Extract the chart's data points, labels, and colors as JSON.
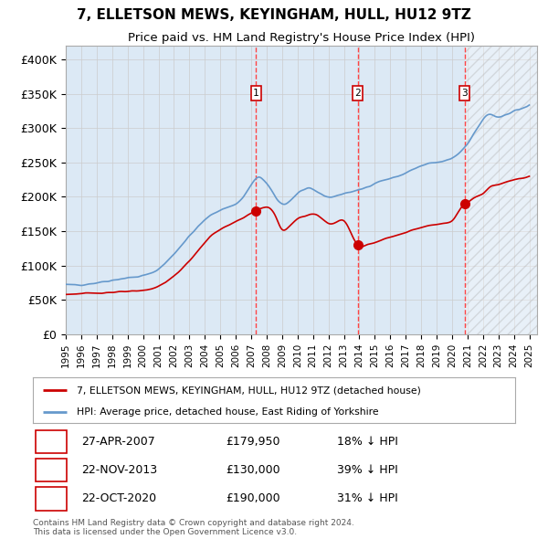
{
  "title": "7, ELLETSON MEWS, KEYINGHAM, HULL, HU12 9TZ",
  "subtitle": "Price paid vs. HM Land Registry's House Price Index (HPI)",
  "red_line_label": "7, ELLETSON MEWS, KEYINGHAM, HULL, HU12 9TZ (detached house)",
  "blue_line_label": "HPI: Average price, detached house, East Riding of Yorkshire",
  "transactions": [
    {
      "num": 1,
      "date": "27-APR-2007",
      "price": 179950,
      "pct": "18% ↓ HPI",
      "x_year": 2007.32
    },
    {
      "num": 2,
      "date": "22-NOV-2013",
      "price": 130000,
      "pct": "39% ↓ HPI",
      "x_year": 2013.89
    },
    {
      "num": 3,
      "date": "22-OCT-2020",
      "price": 190000,
      "pct": "31% ↓ HPI",
      "x_year": 2020.81
    }
  ],
  "ylim": [
    0,
    420000
  ],
  "yticks": [
    0,
    50000,
    100000,
    150000,
    200000,
    250000,
    300000,
    350000,
    400000
  ],
  "ytick_labels": [
    "£0",
    "£50K",
    "£100K",
    "£150K",
    "£200K",
    "£250K",
    "£300K",
    "£350K",
    "£400K"
  ],
  "xlim_start": 1995.0,
  "xlim_end": 2025.5,
  "hpi_color": "#6699cc",
  "red_color": "#cc0000",
  "bg_color": "#dce9f5",
  "grid_color": "#cccccc",
  "dashed_line_color": "#ff4444",
  "box_color": "#cc0000",
  "footnote": "Contains HM Land Registry data © Crown copyright and database right 2024.\nThis data is licensed under the Open Government Licence v3.0.",
  "hpi_anchors": [
    [
      1995.0,
      72000
    ],
    [
      1997.0,
      75000
    ],
    [
      1999.0,
      82000
    ],
    [
      2001.0,
      95000
    ],
    [
      2002.5,
      130000
    ],
    [
      2003.5,
      155000
    ],
    [
      2004.5,
      175000
    ],
    [
      2005.5,
      185000
    ],
    [
      2006.5,
      200000
    ],
    [
      2007.5,
      228000
    ],
    [
      2009.0,
      190000
    ],
    [
      2010.0,
      205000
    ],
    [
      2011.0,
      210000
    ],
    [
      2012.0,
      200000
    ],
    [
      2013.0,
      205000
    ],
    [
      2014.0,
      210000
    ],
    [
      2015.0,
      220000
    ],
    [
      2016.5,
      230000
    ],
    [
      2017.5,
      240000
    ],
    [
      2018.5,
      248000
    ],
    [
      2019.5,
      252000
    ],
    [
      2020.5,
      265000
    ],
    [
      2021.5,
      295000
    ],
    [
      2022.5,
      320000
    ],
    [
      2023.0,
      315000
    ],
    [
      2023.5,
      320000
    ],
    [
      2024.0,
      325000
    ],
    [
      2025.0,
      333000
    ]
  ],
  "red_anchors": [
    [
      1995.0,
      58000
    ],
    [
      1997.0,
      60000
    ],
    [
      1999.0,
      62000
    ],
    [
      2001.0,
      70000
    ],
    [
      2002.5,
      95000
    ],
    [
      2003.5,
      120000
    ],
    [
      2004.5,
      145000
    ],
    [
      2005.5,
      158000
    ],
    [
      2006.5,
      170000
    ],
    [
      2007.32,
      179950
    ],
    [
      2007.5,
      182000
    ],
    [
      2008.0,
      185000
    ],
    [
      2008.5,
      175000
    ],
    [
      2009.0,
      153000
    ],
    [
      2009.5,
      158000
    ],
    [
      2010.0,
      168000
    ],
    [
      2010.5,
      172000
    ],
    [
      2011.0,
      175000
    ],
    [
      2011.5,
      170000
    ],
    [
      2012.0,
      162000
    ],
    [
      2012.5,
      163000
    ],
    [
      2013.0,
      165000
    ],
    [
      2013.89,
      130000
    ],
    [
      2014.0,
      128000
    ],
    [
      2014.5,
      130000
    ],
    [
      2015.0,
      133000
    ],
    [
      2015.5,
      138000
    ],
    [
      2016.0,
      142000
    ],
    [
      2016.5,
      145000
    ],
    [
      2017.0,
      148000
    ],
    [
      2017.5,
      152000
    ],
    [
      2018.0,
      155000
    ],
    [
      2018.5,
      158000
    ],
    [
      2019.0,
      160000
    ],
    [
      2019.5,
      162000
    ],
    [
      2020.0,
      165000
    ],
    [
      2020.81,
      190000
    ],
    [
      2021.0,
      192000
    ],
    [
      2021.5,
      200000
    ],
    [
      2022.0,
      205000
    ],
    [
      2022.5,
      215000
    ],
    [
      2023.0,
      218000
    ],
    [
      2023.5,
      222000
    ],
    [
      2024.0,
      225000
    ],
    [
      2025.0,
      230000
    ]
  ]
}
